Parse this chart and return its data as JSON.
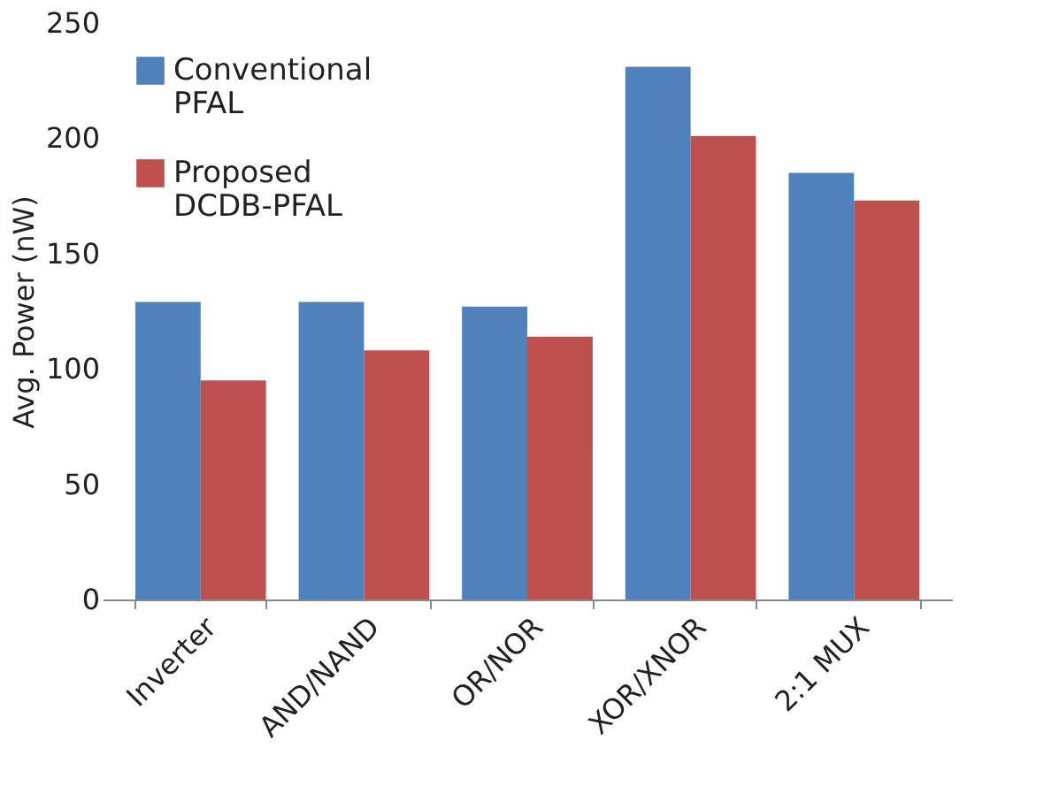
{
  "chart_data": {
    "type": "bar",
    "ylabel": "Avg. Power (nW)",
    "categories": [
      "Inverter",
      "AND/NAND",
      "OR/NOR",
      "XOR/XNOR",
      "2:1 MUX"
    ],
    "series": [
      {
        "name": "Conventional PFAL",
        "color": "#4f81bd",
        "values": [
          129,
          129,
          127,
          231,
          185
        ]
      },
      {
        "name": "Proposed DCDB-PFAL",
        "color": "#c0504d",
        "values": [
          95,
          108,
          114,
          201,
          173
        ]
      }
    ],
    "ylim": [
      0,
      250
    ],
    "yticks": [
      0,
      50,
      100,
      150,
      200,
      250
    ],
    "grid": false,
    "legend": "top left"
  }
}
